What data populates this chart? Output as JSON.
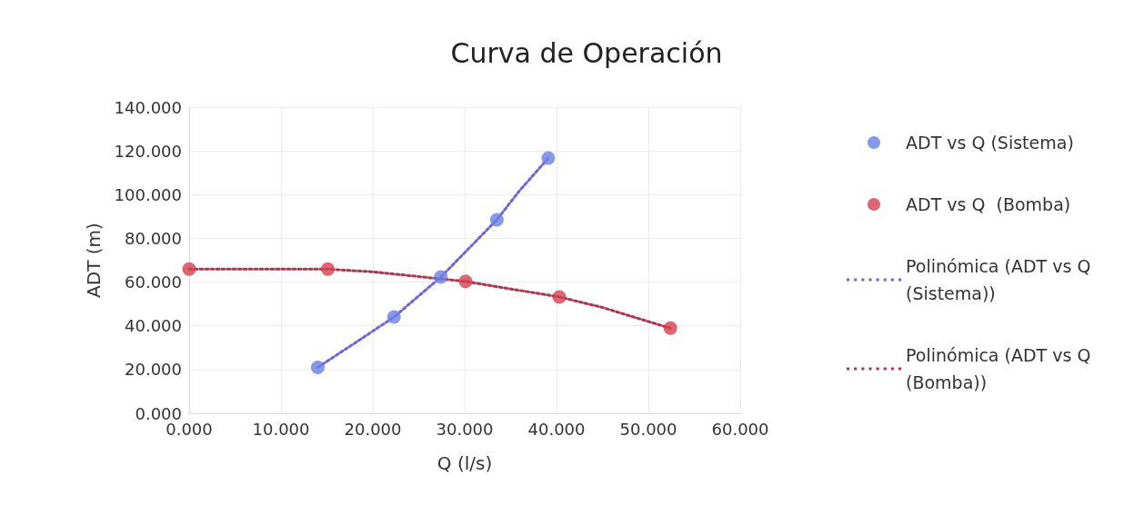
{
  "chart_data": {
    "type": "scatter",
    "title": "Curva de Operación",
    "xlabel": "Q (l/s)",
    "ylabel": "ADT (m)",
    "xlim": [
      0,
      60
    ],
    "ylim": [
      0,
      140
    ],
    "xticks": [
      {
        "value": 0,
        "label": "0.000"
      },
      {
        "value": 10,
        "label": "10.000"
      },
      {
        "value": 20,
        "label": "20.000"
      },
      {
        "value": 30,
        "label": "30.000"
      },
      {
        "value": 40,
        "label": "40.000"
      },
      {
        "value": 50,
        "label": "50.000"
      },
      {
        "value": 60,
        "label": "60.000"
      }
    ],
    "yticks": [
      {
        "value": 0,
        "label": "0.000"
      },
      {
        "value": 20,
        "label": "20.000"
      },
      {
        "value": 40,
        "label": "40.000"
      },
      {
        "value": 60,
        "label": "60.000"
      },
      {
        "value": 80,
        "label": "80.000"
      },
      {
        "value": 100,
        "label": "100.000"
      },
      {
        "value": 120,
        "label": "120.000"
      },
      {
        "value": 140,
        "label": "140.000"
      }
    ],
    "grid": true,
    "legend": "right",
    "marker": "circle",
    "series": [
      {
        "name": "ADT vs Q (Sistema)",
        "color": "#6b7fe3",
        "x": [
          14.0,
          22.3,
          27.4,
          33.5,
          39.1
        ],
        "values": [
          21.0,
          44.0,
          62.3,
          88.5,
          116.7
        ]
      },
      {
        "name": "ADT vs Q  (Bomba)",
        "color": "#d3404e",
        "x": [
          0,
          15.1,
          30.1,
          40.3,
          52.4
        ],
        "values": [
          65.9,
          65.9,
          60.3,
          53.2,
          38.9
        ]
      },
      {
        "name": "Polinómica (ADT vs Q (Sistema))",
        "type": "line",
        "line_style": "dotted",
        "marker": "none",
        "color": "#6f66d4",
        "x": [
          14.0,
          18.0,
          22.3,
          27.4,
          33.5,
          36.0,
          39.1
        ],
        "values": [
          21.0,
          32.0,
          44.0,
          62.3,
          88.5,
          102.0,
          116.7
        ]
      },
      {
        "name": "Polinómica (ADT vs Q (Bomba))",
        "type": "line",
        "line_style": "dotted",
        "marker": "none",
        "color": "#b0344e",
        "x": [
          0,
          15.1,
          20.0,
          30.1,
          40.3,
          45.0,
          52.4
        ],
        "values": [
          65.9,
          65.9,
          64.7,
          60.3,
          53.2,
          48.4,
          38.9
        ]
      }
    ]
  }
}
